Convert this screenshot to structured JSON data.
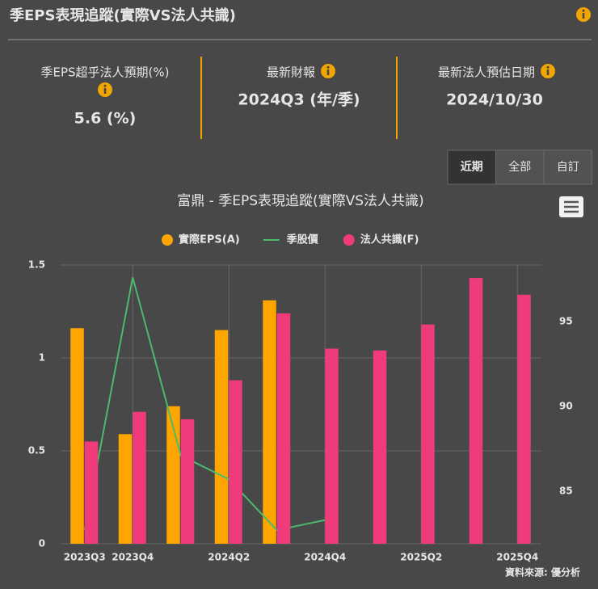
{
  "header": {
    "title": "季EPS表現追蹤(實際VS法人共識)"
  },
  "kpis": [
    {
      "label": "季EPS超乎法人預期(%)",
      "value": "5.6 (%)"
    },
    {
      "label": "最新財報",
      "value": "2024Q3 (年/季)"
    },
    {
      "label": "最新法人預估日期",
      "value": "2024/10/30"
    }
  ],
  "range_buttons": [
    "近期",
    "全部",
    "自訂"
  ],
  "chart_data": {
    "type": "bar",
    "title": "富鼎 - 季EPS表現追蹤(實際VS法人共識)",
    "categories": [
      "2023Q3",
      "2023Q4",
      null,
      "2024Q2",
      null,
      "2024Q4",
      null,
      "2025Q2",
      null,
      "2025Q4"
    ],
    "series": [
      {
        "name": "實際EPS(A)",
        "type": "bar",
        "color": "#ffa500",
        "values": [
          1.16,
          0.59,
          0.74,
          1.15,
          1.31,
          null,
          null,
          null,
          null,
          null
        ]
      },
      {
        "name": "季股價",
        "type": "line",
        "axis": "y2",
        "color": "#4cba6c",
        "values": [
          82.7,
          97.6,
          87.1,
          85.7,
          82.7,
          83.3,
          null,
          null,
          null,
          null
        ]
      },
      {
        "name": "法人共識(F)",
        "type": "bar",
        "color": "#ef3b7b",
        "values": [
          0.55,
          0.71,
          0.67,
          0.88,
          1.24,
          1.05,
          1.04,
          1.18,
          1.43,
          1.34
        ]
      }
    ],
    "ylim": [
      0,
      1.5
    ],
    "yticks": [
      0,
      0.5,
      1,
      1.5
    ],
    "y2lim": [
      81.9,
      98.33
    ],
    "y2ticks": [
      85,
      90,
      95
    ],
    "grid": true,
    "legend": "top"
  },
  "source": "資料來源: 優分析"
}
